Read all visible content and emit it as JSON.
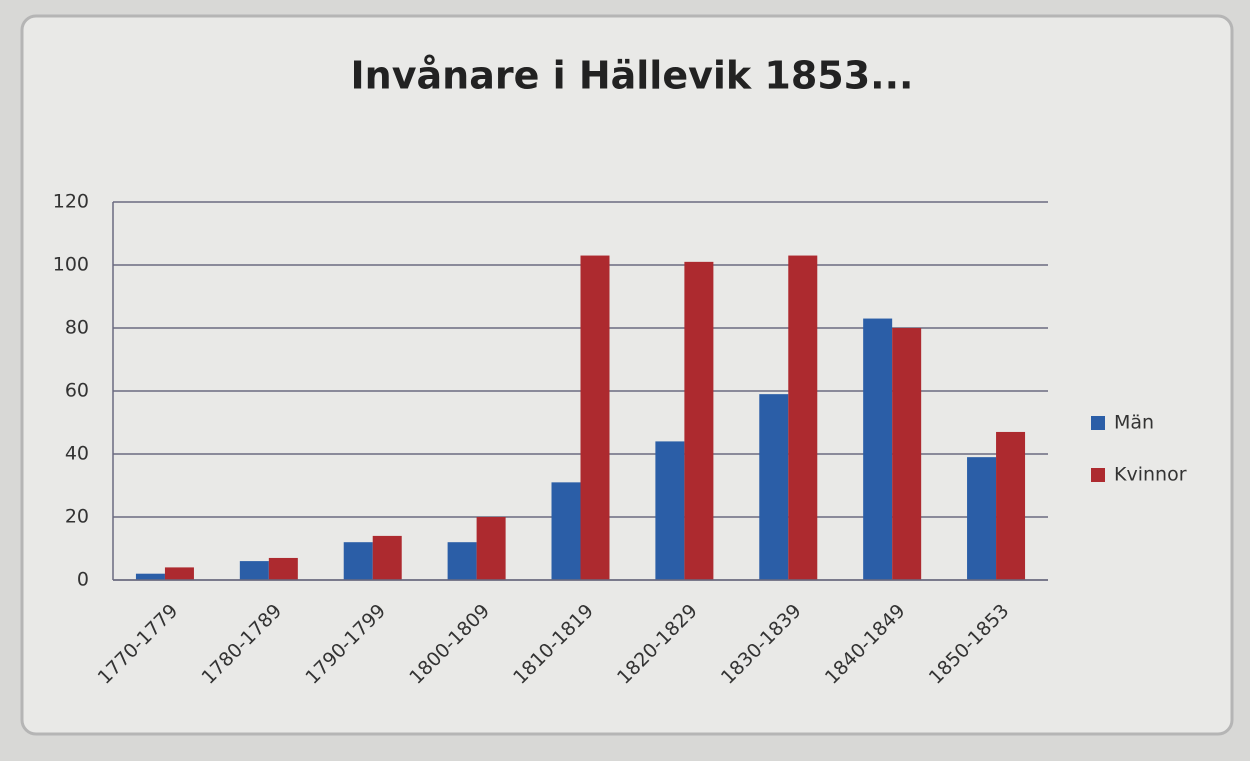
{
  "chart_data": {
    "type": "bar",
    "title": "Invånare i Hällevik 1853...",
    "categories": [
      "1770-1779",
      "1780-1789",
      "1790-1799",
      "1800-1809",
      "1810-1819",
      "1820-1829",
      "1830-1839",
      "1840-1849",
      "1850-1853"
    ],
    "series": [
      {
        "name": "Män",
        "color": "#2b5ea7",
        "values": [
          2,
          6,
          12,
          12,
          31,
          44,
          59,
          83,
          39
        ]
      },
      {
        "name": "Kvinnor",
        "color": "#ad2a2f",
        "values": [
          4,
          7,
          14,
          20,
          103,
          101,
          103,
          80,
          47
        ]
      }
    ],
    "ylim": [
      0,
      120
    ],
    "yticks": [
      0,
      20,
      40,
      60,
      80,
      100,
      120
    ],
    "grid": true,
    "legend": "right"
  }
}
